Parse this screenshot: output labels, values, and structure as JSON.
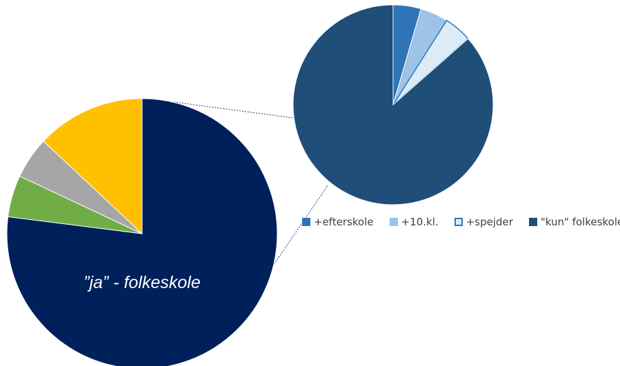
{
  "chart_data": [
    {
      "type": "pie",
      "title": "",
      "slice_label": "”ja” - folkeskole",
      "slices": [
        {
          "name": "",
          "value": 77.0,
          "color": "#00205b"
        },
        {
          "name": "",
          "value": 5.0,
          "color": "#70ad47"
        },
        {
          "name": "",
          "value": 5.0,
          "color": "#a6a6a6"
        },
        {
          "name": "",
          "value": 13.0,
          "color": "#ffc000"
        }
      ]
    },
    {
      "type": "pie",
      "title": "",
      "legend_position": "bottom",
      "slices": [
        {
          "name": "+efterskole",
          "value": 4.5,
          "color": "#2e75b6"
        },
        {
          "name": "+10.kl.",
          "value": 4.5,
          "color": "#9dc3e6"
        },
        {
          "name": "+spejder",
          "value": 4.5,
          "color": "#ddebf7",
          "outline": "#2e75b6"
        },
        {
          "name": "\"kun\" folkeskole",
          "value": 86.5,
          "color": "#1f4e79"
        }
      ]
    }
  ],
  "connector_color": "#1f3864"
}
